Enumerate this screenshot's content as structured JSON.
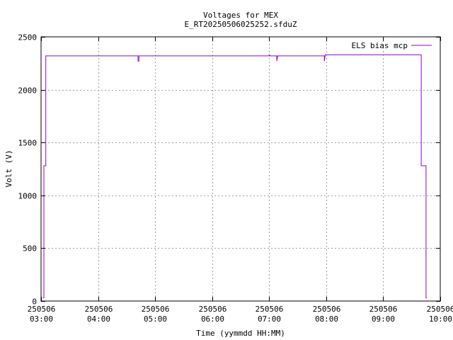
{
  "chart_data": {
    "type": "line",
    "title": "Voltages for MEX",
    "subtitle": "E_RT20250506025252.sfduZ",
    "xlabel": "Time (yymmdd HH:MM)",
    "ylabel": "Volt (V)",
    "xlim": [
      "2025-05-06 03:00",
      "2025-05-06 10:00"
    ],
    "ylim": [
      0,
      2500
    ],
    "grid": true,
    "legend": "top-right",
    "x_ticks": [
      {
        "date": "250506",
        "time": "03:00",
        "x": "2025-05-06 03:00"
      },
      {
        "date": "250506",
        "time": "04:00",
        "x": "2025-05-06 04:00"
      },
      {
        "date": "250506",
        "time": "05:00",
        "x": "2025-05-06 05:00"
      },
      {
        "date": "250506",
        "time": "06:00",
        "x": "2025-05-06 06:00"
      },
      {
        "date": "250506",
        "time": "07:00",
        "x": "2025-05-06 07:00"
      },
      {
        "date": "250506",
        "time": "08:00",
        "x": "2025-05-06 08:00"
      },
      {
        "date": "250506",
        "time": "09:00",
        "x": "2025-05-06 09:00"
      },
      {
        "date": "250506",
        "time": "10:00",
        "x": "2025-05-06 10:00"
      }
    ],
    "y_ticks": [
      {
        "label": "0",
        "value": 0
      },
      {
        "label": "500",
        "value": 500
      },
      {
        "label": "1000",
        "value": 1000
      },
      {
        "label": "1500",
        "value": 1500
      },
      {
        "label": "2000",
        "value": 2000
      },
      {
        "label": "2500",
        "value": 2500
      }
    ],
    "series": [
      {
        "name": "ELS bias mcp",
        "color": "#9400d3",
        "x": [
          "2025-05-06 03:02",
          "2025-05-06 03:03",
          "2025-05-06 03:03",
          "2025-05-06 03:05",
          "2025-05-06 03:05",
          "2025-05-06 04:42",
          "2025-05-06 04:42",
          "2025-05-06 04:43",
          "2025-05-06 04:43",
          "2025-05-06 07:00",
          "2025-05-06 07:00",
          "2025-05-06 07:01",
          "2025-05-06 07:08",
          "2025-05-06 07:08",
          "2025-05-06 07:09",
          "2025-05-06 07:58",
          "2025-05-06 07:58",
          "2025-05-06 07:59",
          "2025-05-06 09:40",
          "2025-05-06 09:40",
          "2025-05-06 09:45",
          "2025-05-06 09:45",
          "2025-05-06 09:46"
        ],
        "values": [
          30,
          30,
          1280,
          1280,
          2320,
          2320,
          2270,
          2270,
          2320,
          2320,
          2330,
          2320,
          2320,
          2270,
          2320,
          2320,
          2270,
          2330,
          2330,
          1280,
          1280,
          30,
          30
        ]
      }
    ]
  }
}
